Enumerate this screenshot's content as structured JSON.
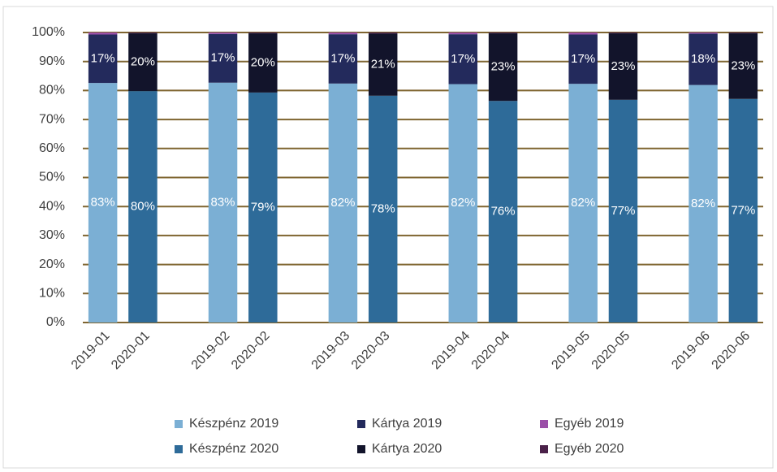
{
  "chart_data": {
    "type": "stacked_bar",
    "categories": [
      "2019-01",
      "2020-01",
      null,
      "2019-02",
      "2020-02",
      null,
      "2019-03",
      "2020-03",
      null,
      "2019-04",
      "2020-04",
      null,
      "2019-05",
      "2020-05",
      null,
      "2019-06",
      "2020-06"
    ],
    "series": [
      {
        "name": "Készpénz 2019",
        "color": "#7bafd4",
        "values": [
          82.6,
          null,
          null,
          82.7,
          null,
          null,
          82.4,
          null,
          null,
          82.2,
          null,
          null,
          82.3,
          null,
          null,
          81.9,
          null
        ],
        "value_labels": [
          "83%",
          null,
          null,
          "83%",
          null,
          null,
          "82%",
          null,
          null,
          "82%",
          null,
          null,
          "82%",
          null,
          null,
          "82%",
          null
        ]
      },
      {
        "name": "Kártya 2019",
        "color": "#232a5c",
        "values": [
          16.7,
          null,
          null,
          16.8,
          null,
          null,
          17.0,
          null,
          null,
          17.2,
          null,
          null,
          17.0,
          null,
          null,
          17.7,
          null
        ],
        "value_labels": [
          "17%",
          null,
          null,
          "17%",
          null,
          null,
          "17%",
          null,
          null,
          "17%",
          null,
          null,
          "17%",
          null,
          null,
          "18%",
          null
        ]
      },
      {
        "name": "Egyéb 2019",
        "color": "#9b4fa8",
        "values": [
          0.7,
          null,
          null,
          0.5,
          null,
          null,
          0.6,
          null,
          null,
          0.6,
          null,
          null,
          0.7,
          null,
          null,
          0.4,
          null
        ]
      },
      {
        "name": "Készpénz 2020",
        "color": "#2e6b99",
        "values": [
          null,
          79.8,
          null,
          null,
          79.3,
          null,
          null,
          78.2,
          null,
          null,
          76.4,
          null,
          null,
          76.8,
          null,
          null,
          77.1
        ],
        "value_labels": [
          null,
          "80%",
          null,
          null,
          "79%",
          null,
          null,
          "78%",
          null,
          null,
          "76%",
          null,
          null,
          "77%",
          null,
          null,
          "77%"
        ]
      },
      {
        "name": "Kártya 2020",
        "color": "#12142b",
        "values": [
          null,
          19.9,
          null,
          null,
          20.4,
          null,
          null,
          21.4,
          null,
          null,
          23.3,
          null,
          null,
          22.9,
          null,
          null,
          22.6
        ],
        "value_labels": [
          null,
          "20%",
          null,
          null,
          "20%",
          null,
          null,
          "21%",
          null,
          null,
          "23%",
          null,
          null,
          "23%",
          null,
          null,
          "23%"
        ]
      },
      {
        "name": "Egyéb 2020",
        "color": "#4a2149",
        "values": [
          null,
          0.3,
          null,
          null,
          0.3,
          null,
          null,
          0.4,
          null,
          null,
          0.3,
          null,
          null,
          0.3,
          null,
          null,
          0.3
        ]
      }
    ],
    "ylim": [
      0,
      100
    ],
    "yticks": [
      {
        "value": 0,
        "label": "0%"
      },
      {
        "value": 10,
        "label": "10%"
      },
      {
        "value": 20,
        "label": "20%"
      },
      {
        "value": 30,
        "label": "30%"
      },
      {
        "value": 40,
        "label": "40%"
      },
      {
        "value": 50,
        "label": "50%"
      },
      {
        "value": 60,
        "label": "60%"
      },
      {
        "value": 70,
        "label": "70%"
      },
      {
        "value": 80,
        "label": "80%"
      },
      {
        "value": 90,
        "label": "90%"
      },
      {
        "value": 100,
        "label": "100%"
      }
    ],
    "grid": true,
    "legend": "bottom"
  }
}
